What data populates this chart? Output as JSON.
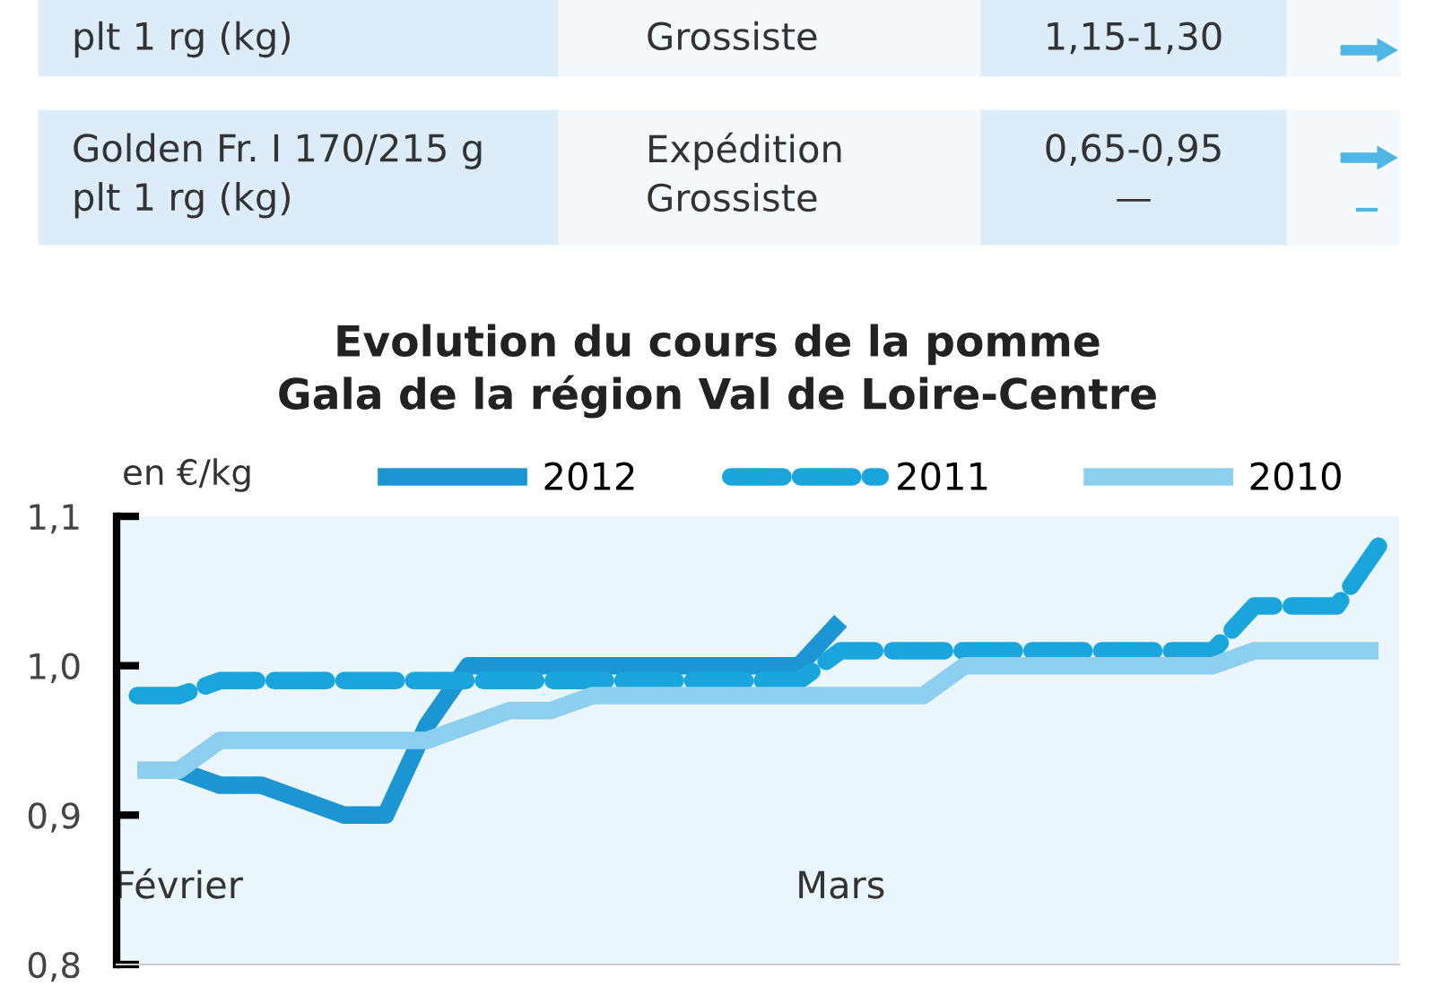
{
  "chart_data": {
    "type": "line",
    "title": "Evolution du cours de la pomme\nGala de la région Val de Loire-Centre",
    "ylabel": "en €/kg",
    "annotations": [
      "plt 1 rg (kg)",
      "Grossiste",
      "1,15-1,30",
      "Golden Fr. I 170/215 g\nplt 1 rg (kg)",
      "Expédition\nGrossiste",
      "0,65-0,95\n—"
    ],
    "categories": [
      null,
      "Février",
      null,
      null,
      null,
      null,
      null,
      null,
      null,
      null,
      null,
      null,
      null,
      null,
      null,
      null,
      null,
      "Mars",
      null,
      null,
      null,
      null,
      null,
      null,
      null,
      null,
      null,
      null,
      null,
      null,
      null
    ],
    "ylim": [
      0.8,
      1.1
    ],
    "yticks": [
      {
        "value": 0.8,
        "label": "0,8"
      },
      {
        "value": 0.9,
        "label": "0,9"
      },
      {
        "value": 1.0,
        "label": "1,0"
      },
      {
        "value": 1.1,
        "label": "1,1"
      }
    ],
    "grid": false,
    "legend": "top",
    "marker": "none",
    "series": [
      {
        "name": "2012",
        "color": "#1b96d2",
        "line_style": "solid",
        "values": [
          null,
          0.93,
          0.92,
          0.92,
          0.91,
          0.9,
          0.9,
          0.96,
          1.0,
          1.0,
          1.0,
          1.0,
          1.0,
          1.0,
          1.0,
          1.0,
          1.0,
          1.03,
          null,
          null,
          null,
          null,
          null,
          null,
          null,
          null,
          null,
          null,
          null,
          null,
          null
        ]
      },
      {
        "name": "2011",
        "color": "#1aa6dc",
        "line_style": "dashed",
        "values": [
          0.98,
          0.98,
          0.99,
          0.99,
          0.99,
          0.99,
          0.99,
          0.99,
          0.99,
          0.99,
          0.99,
          0.99,
          0.99,
          0.99,
          0.99,
          0.99,
          0.99,
          1.01,
          1.01,
          1.01,
          1.01,
          1.01,
          1.01,
          1.01,
          1.01,
          1.01,
          1.01,
          1.04,
          1.04,
          1.04,
          1.08
        ]
      },
      {
        "name": "2010",
        "color": "#8ccfee",
        "line_style": "solid",
        "values": [
          0.93,
          0.93,
          0.95,
          0.95,
          0.95,
          0.95,
          0.95,
          0.95,
          0.96,
          0.97,
          0.97,
          0.98,
          0.98,
          0.98,
          0.98,
          0.98,
          0.98,
          0.98,
          0.98,
          0.98,
          1.0,
          1.0,
          1.0,
          1.0,
          1.0,
          1.0,
          1.0,
          1.01,
          1.01,
          1.01,
          1.01
        ]
      }
    ]
  }
}
